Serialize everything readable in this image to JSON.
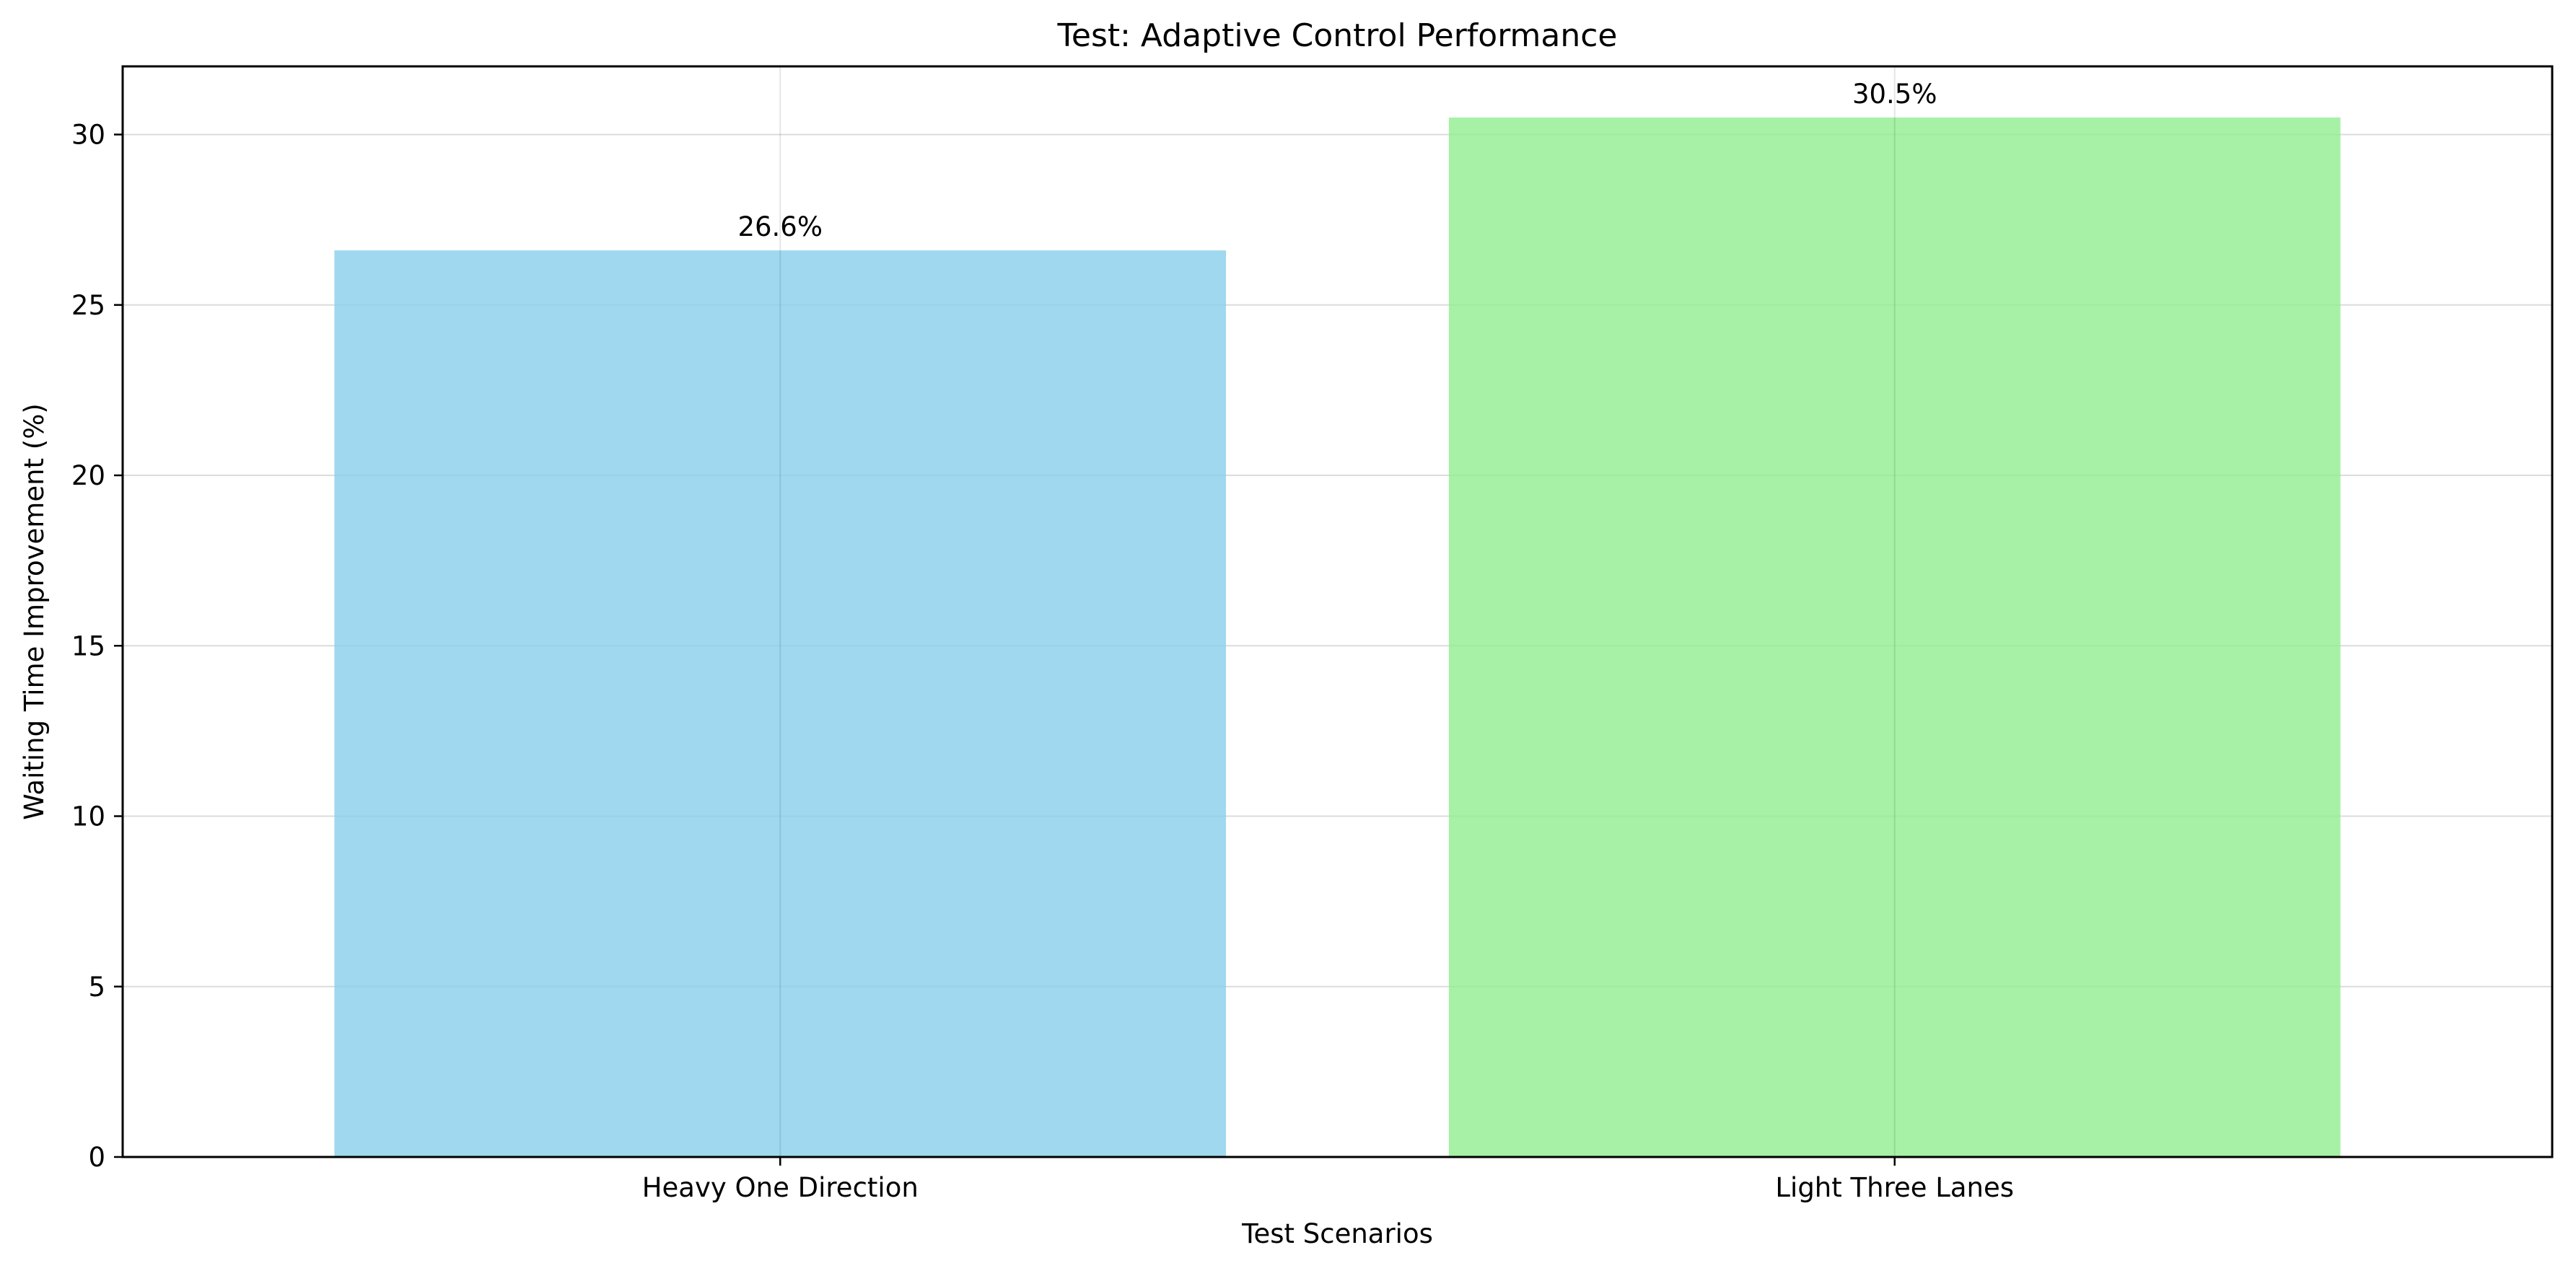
{
  "chart_data": {
    "type": "bar",
    "title": "Test: Adaptive Control Performance",
    "xlabel": "Test Scenarios",
    "ylabel": "Waiting Time Improvement (%)",
    "categories": [
      "Heavy One Direction",
      "Light Three Lanes"
    ],
    "values": [
      26.6,
      30.5
    ],
    "data_labels": [
      "26.6%",
      "30.5%"
    ],
    "bar_colors": [
      "#87ceeb",
      "#90ee90"
    ],
    "ylim": [
      0,
      32
    ],
    "yticks": [
      0,
      5,
      10,
      15,
      20,
      25,
      30
    ],
    "grid": true,
    "legend": false
  }
}
